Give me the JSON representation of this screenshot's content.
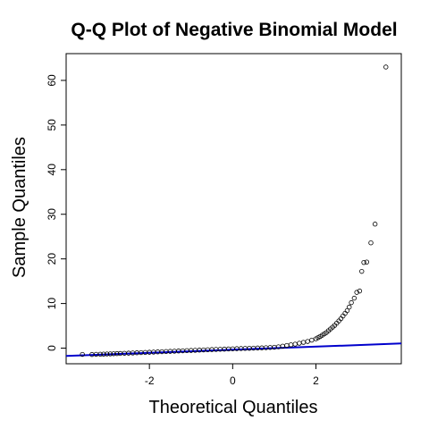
{
  "chart_data": {
    "type": "scatter",
    "title": "Q-Q Plot of Negative Binomial Model",
    "xlabel": "Theoretical Quantiles",
    "ylabel": "Sample Quantiles",
    "xlim": [
      -4.0,
      4.05
    ],
    "ylim": [
      -3.5,
      66.0
    ],
    "x_ticks": [
      -2,
      0,
      2
    ],
    "y_ticks": [
      0,
      10,
      20,
      30,
      40,
      50,
      60
    ],
    "grid": false,
    "point_style": "open-circle",
    "point_color": "#000000",
    "reference_line": {
      "x": [
        -4.0,
        4.05
      ],
      "y": [
        -1.75,
        1.05
      ],
      "color": "#0000cc"
    },
    "points": [
      [
        -3.61,
        -1.4
      ],
      [
        -3.38,
        -1.42
      ],
      [
        -3.28,
        -1.38
      ],
      [
        -3.18,
        -1.36
      ],
      [
        -3.1,
        -1.33
      ],
      [
        -3.02,
        -1.3
      ],
      [
        -2.94,
        -1.28
      ],
      [
        -2.86,
        -1.25
      ],
      [
        -2.78,
        -1.22
      ],
      [
        -2.7,
        -1.19
      ],
      [
        -2.6,
        -1.15
      ],
      [
        -2.5,
        -1.12
      ],
      [
        -2.4,
        -1.08
      ],
      [
        -2.3,
        -1.04
      ],
      [
        -2.2,
        -1.0
      ],
      [
        -2.1,
        -0.96
      ],
      [
        -2.0,
        -0.92
      ],
      [
        -1.9,
        -0.88
      ],
      [
        -1.8,
        -0.84
      ],
      [
        -1.7,
        -0.8
      ],
      [
        -1.6,
        -0.76
      ],
      [
        -1.5,
        -0.72
      ],
      [
        -1.4,
        -0.68
      ],
      [
        -1.3,
        -0.64
      ],
      [
        -1.2,
        -0.6
      ],
      [
        -1.1,
        -0.56
      ],
      [
        -1.0,
        -0.52
      ],
      [
        -0.9,
        -0.48
      ],
      [
        -0.8,
        -0.44
      ],
      [
        -0.7,
        -0.4
      ],
      [
        -0.6,
        -0.36
      ],
      [
        -0.5,
        -0.32
      ],
      [
        -0.4,
        -0.28
      ],
      [
        -0.3,
        -0.25
      ],
      [
        -0.2,
        -0.22
      ],
      [
        -0.1,
        -0.18
      ],
      [
        0.0,
        -0.15
      ],
      [
        0.1,
        -0.12
      ],
      [
        0.2,
        -0.09
      ],
      [
        0.3,
        -0.06
      ],
      [
        0.4,
        -0.03
      ],
      [
        0.5,
        0.0
      ],
      [
        0.6,
        0.03
      ],
      [
        0.7,
        0.06
      ],
      [
        0.8,
        0.1
      ],
      [
        0.9,
        0.15
      ],
      [
        1.0,
        0.2
      ],
      [
        1.1,
        0.3
      ],
      [
        1.2,
        0.45
      ],
      [
        1.3,
        0.6
      ],
      [
        1.4,
        0.75
      ],
      [
        1.5,
        0.9
      ],
      [
        1.6,
        1.1
      ],
      [
        1.7,
        1.3
      ],
      [
        1.8,
        1.5
      ],
      [
        1.9,
        1.8
      ],
      [
        2.0,
        2.1
      ],
      [
        2.05,
        2.35
      ],
      [
        2.1,
        2.6
      ],
      [
        2.15,
        2.9
      ],
      [
        2.2,
        3.2
      ],
      [
        2.25,
        3.5
      ],
      [
        2.3,
        3.9
      ],
      [
        2.35,
        4.3
      ],
      [
        2.4,
        4.7
      ],
      [
        2.45,
        5.1
      ],
      [
        2.5,
        5.6
      ],
      [
        2.55,
        6.1
      ],
      [
        2.6,
        6.6
      ],
      [
        2.65,
        7.2
      ],
      [
        2.7,
        7.8
      ],
      [
        2.75,
        8.4
      ],
      [
        2.8,
        9.2
      ],
      [
        2.85,
        10.2
      ],
      [
        2.92,
        11.2
      ],
      [
        2.98,
        12.5
      ],
      [
        3.05,
        12.8
      ],
      [
        3.1,
        17.2
      ],
      [
        3.15,
        19.2
      ],
      [
        3.22,
        19.3
      ],
      [
        3.32,
        23.6
      ],
      [
        3.42,
        27.8
      ],
      [
        3.68,
        63.0
      ]
    ]
  }
}
